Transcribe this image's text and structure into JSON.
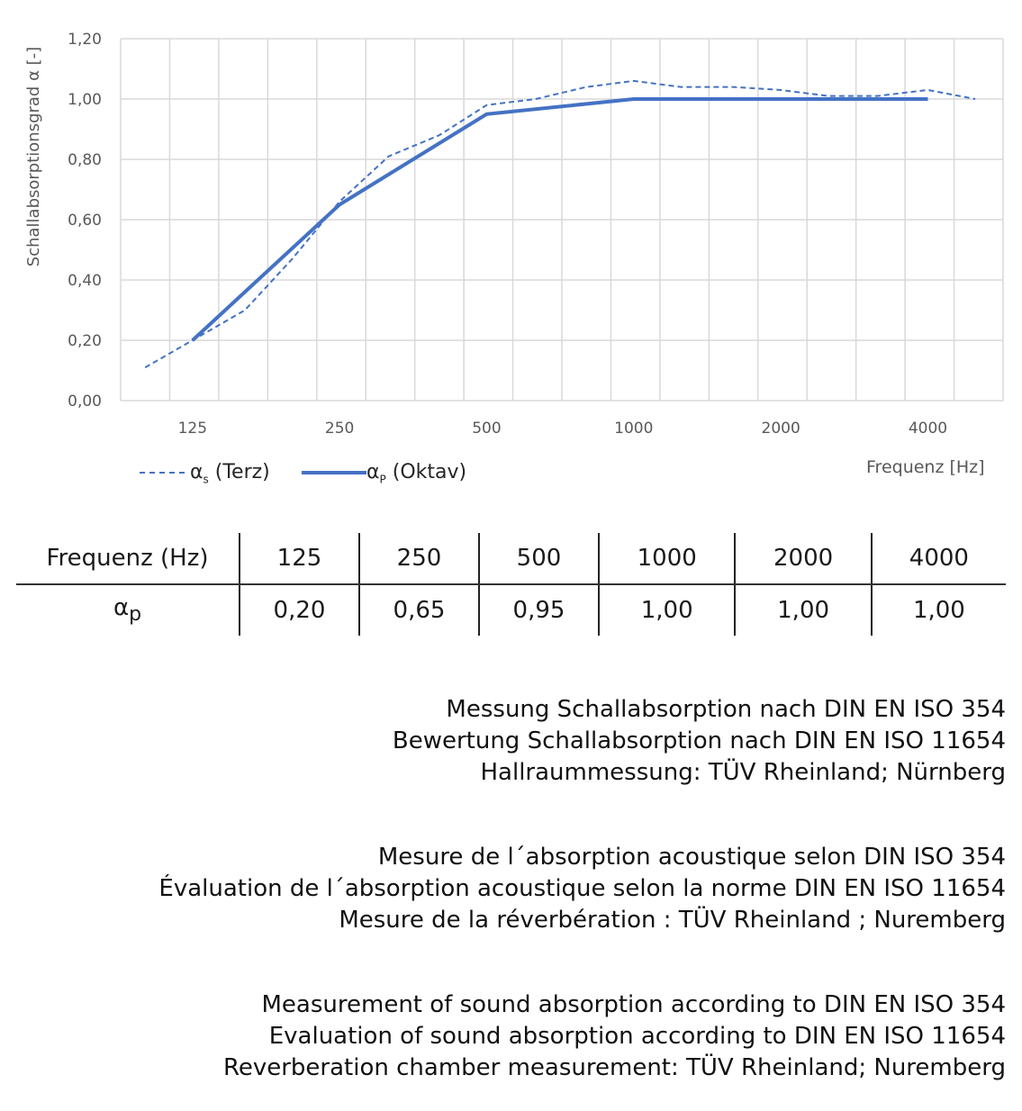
{
  "chart_data": {
    "type": "line",
    "ylabel": "Schallabsorptionsgrad α [-]",
    "xlabel": "Frequenz [Hz]",
    "ylim": [
      0,
      1.2
    ],
    "yticks": [
      "0,00",
      "0,20",
      "0,40",
      "0,60",
      "0,80",
      "1,00",
      "1,20"
    ],
    "xtick_labels": [
      "125",
      "250",
      "500",
      "1000",
      "2000",
      "4000"
    ],
    "x_scale": "log (third-octave bands)",
    "grid": true,
    "legend_position": "bottom-left",
    "series": [
      {
        "name": "αs (Terz)",
        "legend_main": "α",
        "legend_sub": "s",
        "legend_rest": " (Terz)",
        "style": "dashed",
        "color": "#4472C4",
        "x": [
          100,
          125,
          160,
          200,
          250,
          315,
          400,
          500,
          630,
          800,
          1000,
          1250,
          1600,
          2000,
          2500,
          3150,
          4000,
          5000
        ],
        "values": [
          0.11,
          0.2,
          0.3,
          0.47,
          0.66,
          0.81,
          0.88,
          0.98,
          1.0,
          1.04,
          1.06,
          1.04,
          1.04,
          1.03,
          1.01,
          1.01,
          1.03,
          1.0
        ]
      },
      {
        "name": "αP (Oktav)",
        "legend_main": "α",
        "legend_sub": "P",
        "legend_rest": " (Oktav)",
        "style": "solid",
        "color": "#4472C4",
        "x": [
          125,
          250,
          500,
          1000,
          2000,
          4000
        ],
        "values": [
          0.2,
          0.65,
          0.95,
          1.0,
          1.0,
          1.0
        ]
      }
    ]
  },
  "table": {
    "header": [
      "Frequenz (Hz)",
      "125",
      "250",
      "500",
      "1000",
      "2000",
      "4000"
    ],
    "row_label_main": "α",
    "row_label_sub": "p",
    "values": [
      "0,20",
      "0,65",
      "0,95",
      "1,00",
      "1,00",
      "1,00"
    ]
  },
  "notes": [
    [
      "Messung Schallabsorption nach DIN EN ISO 354",
      "Bewertung Schallabsorption nach DIN EN ISO 11654",
      "Hallraummessung: TÜV Rheinland; Nürnberg"
    ],
    [
      "Mesure de l´absorption acoustique selon DIN ISO 354",
      "Évaluation de l´absorption acoustique selon la norme DIN EN ISO 11654",
      "Mesure de la réverbération : TÜV Rheinland ; Nuremberg"
    ],
    [
      "Measurement of sound absorption according to DIN EN ISO 354",
      "Evaluation of sound absorption according to DIN EN ISO 11654",
      "Reverberation chamber measurement: TÜV Rheinland; Nuremberg"
    ]
  ]
}
